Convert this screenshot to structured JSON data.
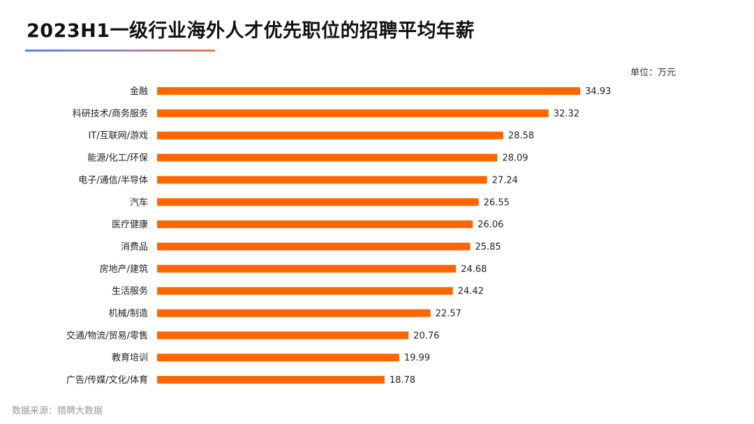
{
  "title": "2023H1一级行业海外人才优先职位的招聘平均年薪",
  "unit_label": "单位：万元",
  "source_note": "数据来源：猎聘大数据",
  "colors": {
    "bar": "#ff6600",
    "title_underline_start": "#4f86e8",
    "title_underline_end": "#f07a4a"
  },
  "chart_data": {
    "type": "bar",
    "orientation": "horizontal",
    "title": "2023H1一级行业海外人才优先职位的招聘平均年薪",
    "unit": "万元",
    "categories": [
      "金融",
      "科研技术/商务服务",
      "IT/互联网/游戏",
      "能源/化工/环保",
      "电子/通信/半导体",
      "汽车",
      "医疗健康",
      "消费品",
      "房地产/建筑",
      "生活服务",
      "机械/制造",
      "交通/物流/贸易/零售",
      "教育培训",
      "广告/传媒/文化/体育"
    ],
    "values": [
      34.93,
      32.32,
      28.58,
      28.09,
      27.24,
      26.55,
      26.06,
      25.85,
      24.68,
      24.42,
      22.57,
      20.76,
      19.99,
      18.78
    ],
    "value_labels": [
      "34.93",
      "32.32",
      "28.58",
      "28.09",
      "27.24",
      "26.55",
      "26.06",
      "25.85",
      "24.68",
      "24.42",
      "22.57",
      "20.76",
      "19.99",
      "18.78"
    ],
    "grid": false,
    "legend": "none"
  }
}
